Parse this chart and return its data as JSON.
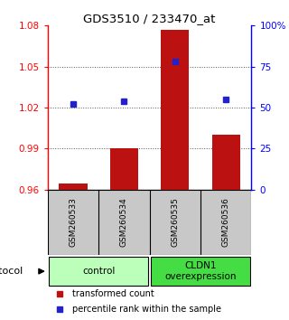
{
  "title": "GDS3510 / 233470_at",
  "samples": [
    "GSM260533",
    "GSM260534",
    "GSM260535",
    "GSM260536"
  ],
  "bar_values": [
    0.9645,
    0.99,
    1.077,
    1.0
  ],
  "dot_percentiles": [
    52,
    54,
    78,
    55
  ],
  "ylim_left": [
    0.96,
    1.08
  ],
  "ylim_right": [
    0,
    100
  ],
  "yticks_left": [
    0.96,
    0.99,
    1.02,
    1.05,
    1.08
  ],
  "ytick_labels_left": [
    "0.96",
    "0.99",
    "1.02",
    "1.05",
    "1.08"
  ],
  "yticks_right": [
    0,
    25,
    50,
    75,
    100
  ],
  "ytick_labels_right": [
    "0",
    "25",
    "50",
    "75",
    "100%"
  ],
  "bar_color": "#bb1111",
  "dot_color": "#2222cc",
  "groups": [
    {
      "label": "control",
      "samples": [
        0,
        1
      ],
      "color": "#bbffbb"
    },
    {
      "label": "CLDN1\noverexpression",
      "samples": [
        2,
        3
      ],
      "color": "#44dd44"
    }
  ],
  "protocol_label": "protocol",
  "legend_bar_label": "transformed count",
  "legend_dot_label": "percentile rank within the sample",
  "gridline_color": "#555555",
  "bar_baseline": 0.96,
  "sample_box_color": "#c8c8c8",
  "background_color": "#ffffff"
}
